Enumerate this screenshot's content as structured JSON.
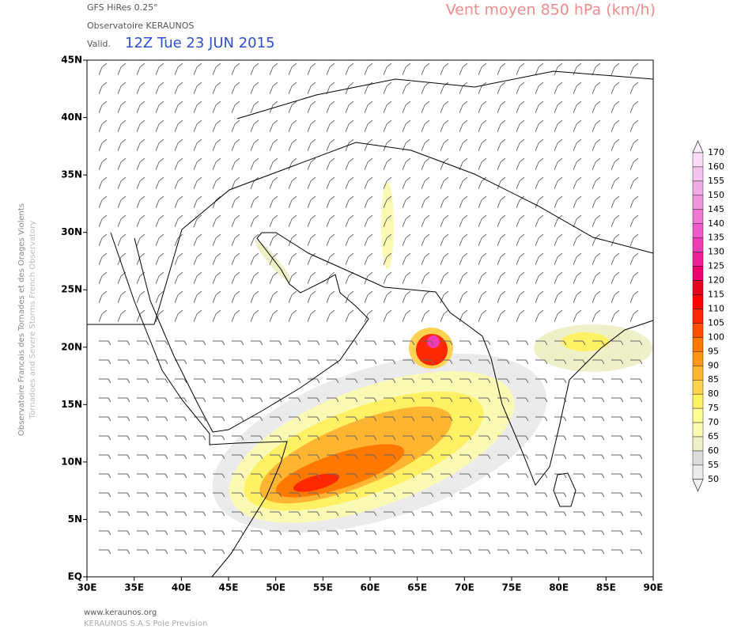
{
  "header": {
    "model": "GFS HiRes 0.25°",
    "source": "Observatoire KERAUNOS",
    "valid_prefix": "Valid.",
    "valid_time": "12Z Tue 23 JUN 2015",
    "title": "Vent moyen 850 hPa (km/h)"
  },
  "axes": {
    "lat_labels": [
      "45N",
      "40N",
      "35N",
      "30N",
      "25N",
      "20N",
      "15N",
      "10N",
      "5N",
      "EQ"
    ],
    "lon_labels": [
      "30E",
      "35E",
      "40E",
      "45E",
      "50E",
      "55E",
      "60E",
      "65E",
      "70E",
      "75E",
      "80E",
      "85E",
      "90E"
    ]
  },
  "colorbar": {
    "levels": [
      170,
      160,
      155,
      150,
      145,
      140,
      135,
      130,
      125,
      120,
      115,
      110,
      105,
      100,
      95,
      90,
      85,
      80,
      75,
      70,
      65,
      60,
      55,
      50
    ],
    "colors": [
      "#fff0ff",
      "#fadcf8",
      "#f5c3f0",
      "#f0aae6",
      "#f096dc",
      "#f078d2",
      "#f05ac8",
      "#f03cb4",
      "#f01e96",
      "#f0006e",
      "#e6001e",
      "#ff0000",
      "#ff2800",
      "#ff5000",
      "#ff7800",
      "#ff9614",
      "#ffb432",
      "#ffd250",
      "#fff064",
      "#ffff96",
      "#fafab4",
      "#f0f0c8",
      "#dcdcdc",
      "#ebebeb",
      "#f2f2f2"
    ]
  },
  "side_text": [
    "Observatoire Francais des Tornades et des Orages Violents",
    "Tornadoes and Severe Storms French Observatory"
  ],
  "footer": [
    "www.keraunos.org",
    "KERAUNOS S.A.S Pole Prevision"
  ]
}
